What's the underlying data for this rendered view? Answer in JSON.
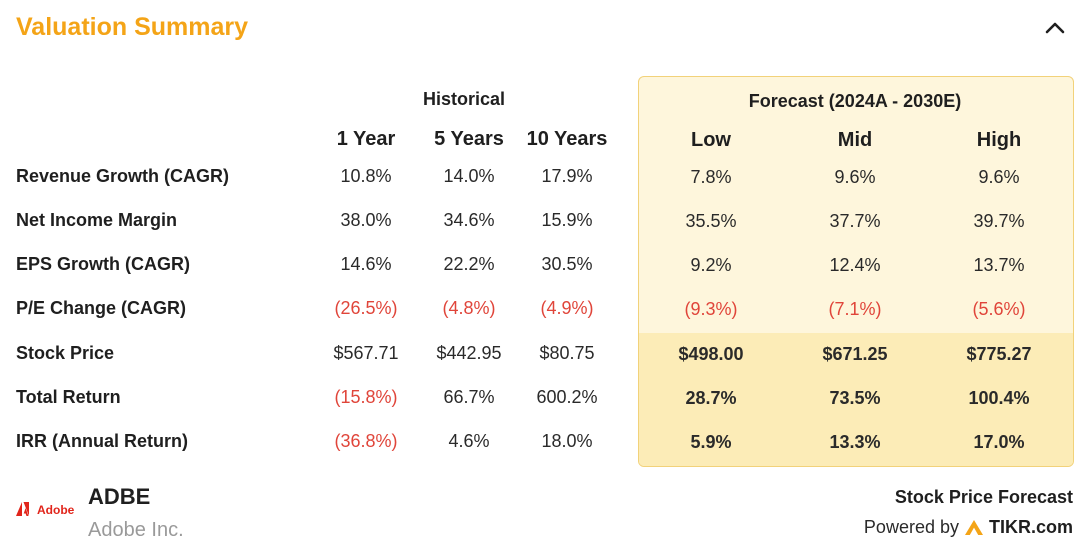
{
  "title": "Valuation Summary",
  "colors": {
    "accent": "#f4a417",
    "negative": "#e0453a",
    "forecast_bg": "#fef6dc",
    "forecast_bg_dark": "#fcecb7"
  },
  "icons": {
    "collapse": "chevron-up-icon",
    "brand": "adobe-logo",
    "tikr": "tikr-logo"
  },
  "table": {
    "historical_label": "Historical",
    "forecast_label": "Forecast (2024A - 2030E)",
    "columns": [
      "1 Year",
      "5 Years",
      "10 Years",
      "Low",
      "Mid",
      "High"
    ],
    "rows": [
      {
        "label": "Revenue Growth (CAGR)",
        "values": [
          "10.8%",
          "14.0%",
          "17.9%",
          "7.8%",
          "9.6%",
          "9.6%"
        ]
      },
      {
        "label": "Net Income Margin",
        "values": [
          "38.0%",
          "34.6%",
          "15.9%",
          "35.5%",
          "37.7%",
          "39.7%"
        ]
      },
      {
        "label": "EPS Growth (CAGR)",
        "values": [
          "14.6%",
          "22.2%",
          "30.5%",
          "9.2%",
          "12.4%",
          "13.7%"
        ]
      },
      {
        "label": "P/E Change (CAGR)",
        "values": [
          "(26.5%)",
          "(4.8%)",
          "(4.9%)",
          "(9.3%)",
          "(7.1%)",
          "(5.6%)"
        ]
      },
      {
        "label": "Stock Price",
        "values": [
          "$567.71",
          "$442.95",
          "$80.75",
          "$498.00",
          "$671.25",
          "$775.27"
        ]
      },
      {
        "label": "Total Return",
        "values": [
          "(15.8%)",
          "66.7%",
          "600.2%",
          "28.7%",
          "73.5%",
          "100.4%"
        ]
      },
      {
        "label": "IRR (Annual Return)",
        "values": [
          "(36.8%)",
          "4.6%",
          "18.0%",
          "5.9%",
          "13.3%",
          "17.0%"
        ]
      }
    ]
  },
  "footer": {
    "logo_text": "Adobe",
    "ticker": "ADBE",
    "company": "Adobe Inc.",
    "stock_price_forecast": "Stock Price Forecast",
    "powered_by": "Powered by",
    "tikr": "TIKR.com"
  }
}
